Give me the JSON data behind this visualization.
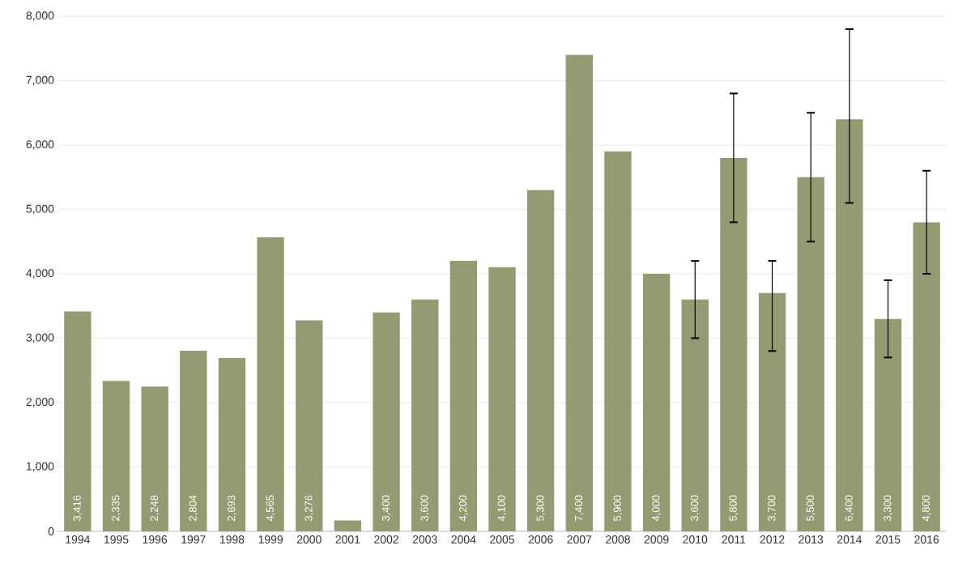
{
  "chart_data": {
    "type": "bar",
    "categories": [
      "1994",
      "1995",
      "1996",
      "1997",
      "1998",
      "1999",
      "2000",
      "2001",
      "2002",
      "2003",
      "2004",
      "2005",
      "2006",
      "2007",
      "2008",
      "2009",
      "2010",
      "2011",
      "2012",
      "2013",
      "2014",
      "2015",
      "2016"
    ],
    "values": [
      3416,
      2335,
      2248,
      2804,
      2693,
      4565,
      3276,
      170,
      3400,
      3600,
      4200,
      4100,
      5300,
      7400,
      5900,
      4000,
      3600,
      5800,
      3700,
      5500,
      6400,
      3300,
      4800
    ],
    "value_labels": [
      "3,416",
      "2,335",
      "2,248",
      "2,804",
      "2,693",
      "4,565",
      "3,276",
      null,
      "3,400",
      "3,600",
      "4,200",
      "4,100",
      "5,300",
      "7,400",
      "5,900",
      "4,000",
      "3,600",
      "5,800",
      "3,700",
      "5,500",
      "6,400",
      "3,300",
      "4,800"
    ],
    "errors": [
      null,
      null,
      null,
      null,
      null,
      null,
      null,
      null,
      null,
      null,
      null,
      null,
      null,
      null,
      null,
      null,
      [
        3000,
        4200
      ],
      [
        4800,
        6800
      ],
      [
        2800,
        4200
      ],
      [
        4500,
        6500
      ],
      [
        5100,
        7800
      ],
      [
        2700,
        3900
      ],
      [
        4000,
        5600
      ]
    ],
    "color": "#969a72",
    "ylim": [
      0,
      8000
    ],
    "yticks": [
      {
        "value": 0,
        "label": "0"
      },
      {
        "value": 1000,
        "label": "1,000"
      },
      {
        "value": 2000,
        "label": "2,000"
      },
      {
        "value": 3000,
        "label": "3,000"
      },
      {
        "value": 4000,
        "label": "4,000"
      },
      {
        "value": 5000,
        "label": "5,000"
      },
      {
        "value": 6000,
        "label": "6,000"
      },
      {
        "value": 7000,
        "label": "7,000"
      },
      {
        "value": 8000,
        "label": "8,000"
      }
    ],
    "grid": "y"
  }
}
